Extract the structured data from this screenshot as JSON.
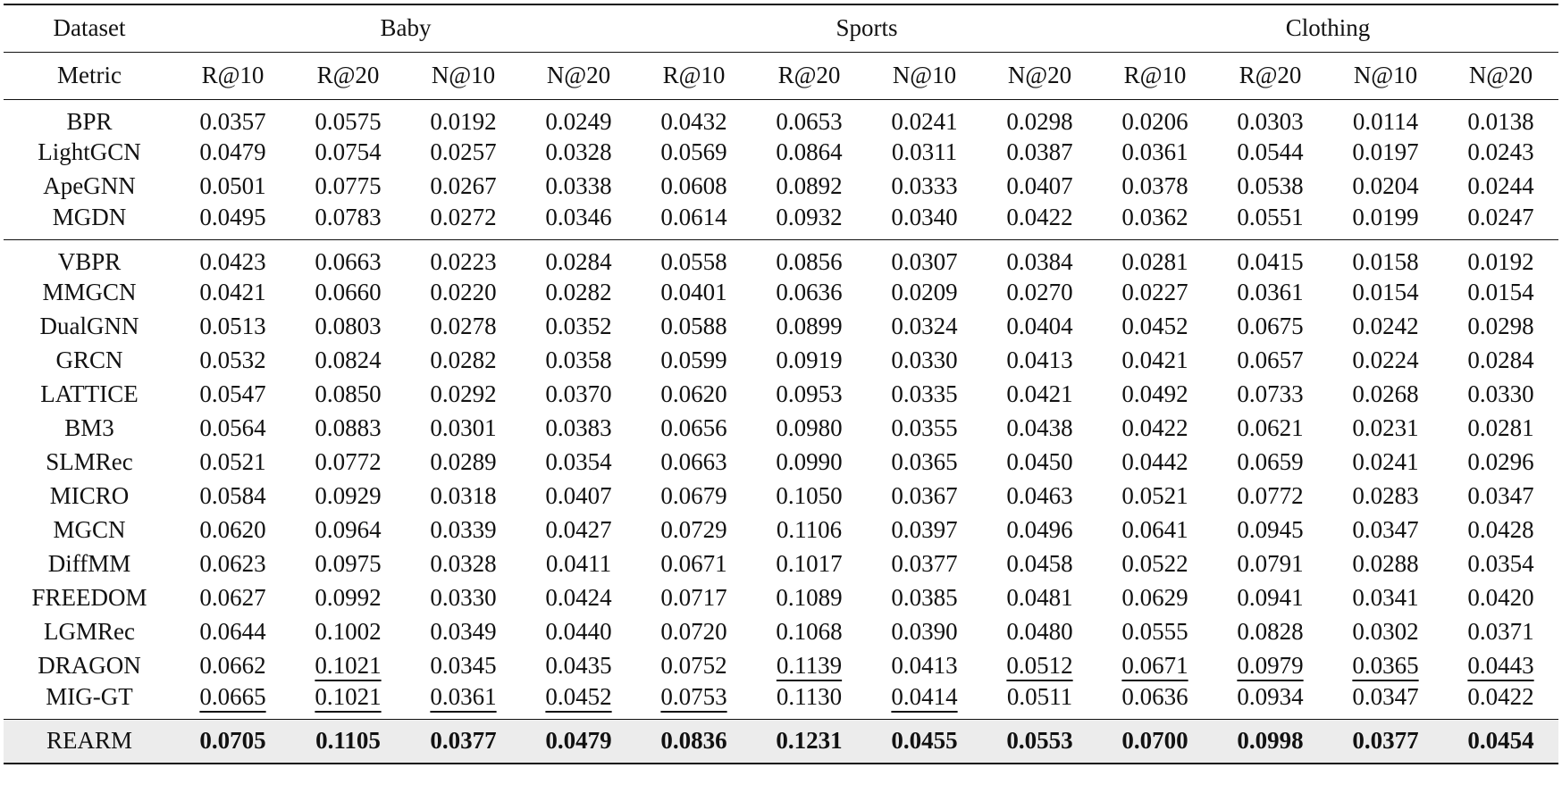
{
  "table": {
    "header": {
      "dataset": "Dataset",
      "metric": "Metric",
      "groups": [
        "Baby",
        "Sports",
        "Clothing"
      ],
      "metrics": [
        "R@10",
        "R@20",
        "N@10",
        "N@20",
        "R@10",
        "R@20",
        "N@10",
        "N@20",
        "R@10",
        "R@20",
        "N@10",
        "N@20"
      ]
    },
    "sections": [
      {
        "rows": [
          {
            "name": "BPR",
            "values": [
              "0.0357",
              "0.0575",
              "0.0192",
              "0.0249",
              "0.0432",
              "0.0653",
              "0.0241",
              "0.0298",
              "0.0206",
              "0.0303",
              "0.0114",
              "0.0138"
            ]
          },
          {
            "name": "LightGCN",
            "values": [
              "0.0479",
              "0.0754",
              "0.0257",
              "0.0328",
              "0.0569",
              "0.0864",
              "0.0311",
              "0.0387",
              "0.0361",
              "0.0544",
              "0.0197",
              "0.0243"
            ]
          },
          {
            "name": "ApeGNN",
            "values": [
              "0.0501",
              "0.0775",
              "0.0267",
              "0.0338",
              "0.0608",
              "0.0892",
              "0.0333",
              "0.0407",
              "0.0378",
              "0.0538",
              "0.0204",
              "0.0244"
            ]
          },
          {
            "name": "MGDN",
            "values": [
              "0.0495",
              "0.0783",
              "0.0272",
              "0.0346",
              "0.0614",
              "0.0932",
              "0.0340",
              "0.0422",
              "0.0362",
              "0.0551",
              "0.0199",
              "0.0247"
            ]
          }
        ]
      },
      {
        "rows": [
          {
            "name": "VBPR",
            "values": [
              "0.0423",
              "0.0663",
              "0.0223",
              "0.0284",
              "0.0558",
              "0.0856",
              "0.0307",
              "0.0384",
              "0.0281",
              "0.0415",
              "0.0158",
              "0.0192"
            ]
          },
          {
            "name": "MMGCN",
            "values": [
              "0.0421",
              "0.0660",
              "0.0220",
              "0.0282",
              "0.0401",
              "0.0636",
              "0.0209",
              "0.0270",
              "0.0227",
              "0.0361",
              "0.0154",
              "0.0154"
            ]
          },
          {
            "name": "DualGNN",
            "values": [
              "0.0513",
              "0.0803",
              "0.0278",
              "0.0352",
              "0.0588",
              "0.0899",
              "0.0324",
              "0.0404",
              "0.0452",
              "0.0675",
              "0.0242",
              "0.0298"
            ]
          },
          {
            "name": "GRCN",
            "values": [
              "0.0532",
              "0.0824",
              "0.0282",
              "0.0358",
              "0.0599",
              "0.0919",
              "0.0330",
              "0.0413",
              "0.0421",
              "0.0657",
              "0.0224",
              "0.0284"
            ]
          },
          {
            "name": "LATTICE",
            "values": [
              "0.0547",
              "0.0850",
              "0.0292",
              "0.0370",
              "0.0620",
              "0.0953",
              "0.0335",
              "0.0421",
              "0.0492",
              "0.0733",
              "0.0268",
              "0.0330"
            ]
          },
          {
            "name": "BM3",
            "values": [
              "0.0564",
              "0.0883",
              "0.0301",
              "0.0383",
              "0.0656",
              "0.0980",
              "0.0355",
              "0.0438",
              "0.0422",
              "0.0621",
              "0.0231",
              "0.0281"
            ]
          },
          {
            "name": "SLMRec",
            "values": [
              "0.0521",
              "0.0772",
              "0.0289",
              "0.0354",
              "0.0663",
              "0.0990",
              "0.0365",
              "0.0450",
              "0.0442",
              "0.0659",
              "0.0241",
              "0.0296"
            ]
          },
          {
            "name": "MICRO",
            "values": [
              "0.0584",
              "0.0929",
              "0.0318",
              "0.0407",
              "0.0679",
              "0.1050",
              "0.0367",
              "0.0463",
              "0.0521",
              "0.0772",
              "0.0283",
              "0.0347"
            ]
          },
          {
            "name": "MGCN",
            "values": [
              "0.0620",
              "0.0964",
              "0.0339",
              "0.0427",
              "0.0729",
              "0.1106",
              "0.0397",
              "0.0496",
              "0.0641",
              "0.0945",
              "0.0347",
              "0.0428"
            ]
          },
          {
            "name": "DiffMM",
            "values": [
              "0.0623",
              "0.0975",
              "0.0328",
              "0.0411",
              "0.0671",
              "0.1017",
              "0.0377",
              "0.0458",
              "0.0522",
              "0.0791",
              "0.0288",
              "0.0354"
            ]
          },
          {
            "name": "FREEDOM",
            "values": [
              "0.0627",
              "0.0992",
              "0.0330",
              "0.0424",
              "0.0717",
              "0.1089",
              "0.0385",
              "0.0481",
              "0.0629",
              "0.0941",
              "0.0341",
              "0.0420"
            ]
          },
          {
            "name": "LGMRec",
            "values": [
              "0.0644",
              "0.1002",
              "0.0349",
              "0.0440",
              "0.0720",
              "0.1068",
              "0.0390",
              "0.0480",
              "0.0555",
              "0.0828",
              "0.0302",
              "0.0371"
            ]
          },
          {
            "name": "DRAGON",
            "values": [
              "0.0662",
              "0.1021",
              "0.0345",
              "0.0435",
              "0.0752",
              "0.1139",
              "0.0413",
              "0.0512",
              "0.0671",
              "0.0979",
              "0.0365",
              "0.0443"
            ],
            "underlined": [
              1,
              5,
              7,
              8,
              9,
              10,
              11
            ]
          },
          {
            "name": "MIG-GT",
            "values": [
              "0.0665",
              "0.1021",
              "0.0361",
              "0.0452",
              "0.0753",
              "0.1130",
              "0.0414",
              "0.0511",
              "0.0636",
              "0.0934",
              "0.0347",
              "0.0422"
            ],
            "underlined": [
              0,
              1,
              2,
              3,
              4,
              6
            ]
          }
        ]
      },
      {
        "highlight": true,
        "rows": [
          {
            "name": "REARM",
            "values": [
              "0.0705",
              "0.1105",
              "0.0377",
              "0.0479",
              "0.0836",
              "0.1231",
              "0.0455",
              "0.0553",
              "0.0700",
              "0.0998",
              "0.0377",
              "0.0454"
            ]
          }
        ]
      }
    ]
  }
}
